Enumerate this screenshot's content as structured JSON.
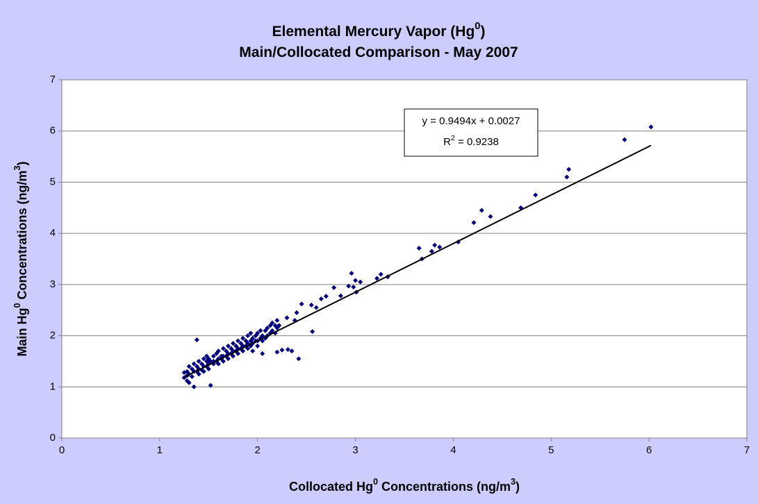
{
  "chart_data": {
    "type": "scatter",
    "title_lines": [
      [
        {
          "text": "Elemental Mercury Vapor (Hg",
          "sup": false
        },
        {
          "text": "0",
          "sup": true
        },
        {
          "text": ")",
          "sup": false
        }
      ],
      [
        {
          "text": "Main/Collocated Comparison - May 2007",
          "sup": false
        }
      ]
    ],
    "x_label": [
      {
        "text": "Collocated Hg",
        "sup": false
      },
      {
        "text": "0",
        "sup": true
      },
      {
        "text": " Concentrations (ng/m",
        "sup": false
      },
      {
        "text": "3",
        "sup": true
      },
      {
        "text": ")",
        "sup": false
      }
    ],
    "y_label": [
      {
        "text": "Main Hg",
        "sup": false
      },
      {
        "text": "0",
        "sup": true
      },
      {
        "text": " Concentrations (ng/m",
        "sup": false
      },
      {
        "text": "3",
        "sup": true
      },
      {
        "text": ")",
        "sup": false
      }
    ],
    "xlim": [
      0,
      7
    ],
    "xticks": [
      0,
      1,
      2,
      3,
      4,
      5,
      6,
      7
    ],
    "ylim": [
      0,
      7
    ],
    "yticks": [
      0,
      1,
      2,
      3,
      4,
      5,
      6,
      7
    ],
    "grid": true,
    "color": "#000080",
    "trendline": {
      "slope": 0.9494,
      "intercept": 0.0027,
      "x_range": [
        1.25,
        6.02
      ],
      "color": "#000000",
      "equation_label": [
        {
          "text": "y = 0.9494x + 0.0027",
          "sup": false
        }
      ],
      "r2_label": [
        {
          "text": "R",
          "sup": false
        },
        {
          "text": "2",
          "sup": true
        },
        {
          "text": " = 0.9238",
          "sup": false
        }
      ]
    },
    "x": [
      6.02,
      5.75,
      5.18,
      5.16,
      4.84,
      4.69,
      4.38,
      4.29,
      4.21,
      4.05,
      3.86,
      3.81,
      3.78,
      3.68,
      3.65,
      3.33,
      3.26,
      3.22,
      3.05,
      3.0,
      2.96,
      2.98,
      3.01,
      2.93,
      2.85,
      2.78,
      2.7,
      2.65,
      2.55,
      2.6,
      2.56,
      2.42,
      2.35,
      2.31,
      2.25,
      2.45,
      2.4,
      2.38,
      2.3,
      2.22,
      1.25,
      1.25,
      1.28,
      1.28,
      1.28,
      1.3,
      1.3,
      1.3,
      1.33,
      1.33,
      1.35,
      1.35,
      1.35,
      1.38,
      1.38,
      1.38,
      1.4,
      1.4,
      1.4,
      1.43,
      1.43,
      1.45,
      1.45,
      1.45,
      1.48,
      1.48,
      1.48,
      1.5,
      1.5,
      1.5,
      1.52,
      1.52,
      1.55,
      1.55,
      1.55,
      1.58,
      1.58,
      1.6,
      1.6,
      1.6,
      1.63,
      1.63,
      1.65,
      1.65,
      1.65,
      1.68,
      1.68,
      1.7,
      1.7,
      1.7,
      1.73,
      1.73,
      1.75,
      1.75,
      1.75,
      1.78,
      1.78,
      1.8,
      1.8,
      1.8,
      1.83,
      1.83,
      1.85,
      1.85,
      1.85,
      1.88,
      1.88,
      1.9,
      1.9,
      1.9,
      1.93,
      1.93,
      1.93,
      1.95,
      1.95,
      1.95,
      1.98,
      1.98,
      2.0,
      2.0,
      2.0,
      2.03,
      2.03,
      2.05,
      2.05,
      2.05,
      2.08,
      2.08,
      2.1,
      2.1,
      2.13,
      2.13,
      2.15,
      2.15,
      2.18,
      2.18,
      2.2,
      2.2,
      2.2
    ],
    "values": [
      6.08,
      5.83,
      5.25,
      5.1,
      4.75,
      4.5,
      4.33,
      4.45,
      4.21,
      3.83,
      3.73,
      3.77,
      3.65,
      3.5,
      3.71,
      3.15,
      3.2,
      3.12,
      3.05,
      3.08,
      3.22,
      2.95,
      2.85,
      2.97,
      2.78,
      2.94,
      2.77,
      2.72,
      2.6,
      2.55,
      2.08,
      1.55,
      1.7,
      1.73,
      1.72,
      2.62,
      2.45,
      2.3,
      2.35,
      2.2,
      1.18,
      1.28,
      1.12,
      1.3,
      1.22,
      1.25,
      1.4,
      1.08,
      1.2,
      1.35,
      1.0,
      1.3,
      1.45,
      1.3,
      1.4,
      1.92,
      1.25,
      1.5,
      1.35,
      1.33,
      1.45,
      1.3,
      1.55,
      1.4,
      1.4,
      1.5,
      1.6,
      1.35,
      1.45,
      1.55,
      1.03,
      1.5,
      1.45,
      1.6,
      1.5,
      1.5,
      1.65,
      1.45,
      1.55,
      1.7,
      1.55,
      1.6,
      1.5,
      1.6,
      1.75,
      1.6,
      1.7,
      1.55,
      1.65,
      1.8,
      1.65,
      1.75,
      1.6,
      1.7,
      1.85,
      1.7,
      1.8,
      1.65,
      1.75,
      1.9,
      1.75,
      1.85,
      1.7,
      1.8,
      1.95,
      1.8,
      1.9,
      1.75,
      1.85,
      2.0,
      1.8,
      1.9,
      2.05,
      1.7,
      1.85,
      1.95,
      1.9,
      2.0,
      1.8,
      1.9,
      2.05,
      1.95,
      2.1,
      1.65,
      1.9,
      2.0,
      1.95,
      2.1,
      2.0,
      2.15,
      2.05,
      2.2,
      2.1,
      2.25,
      2.05,
      2.2,
      1.68,
      2.15,
      2.3
    ]
  }
}
